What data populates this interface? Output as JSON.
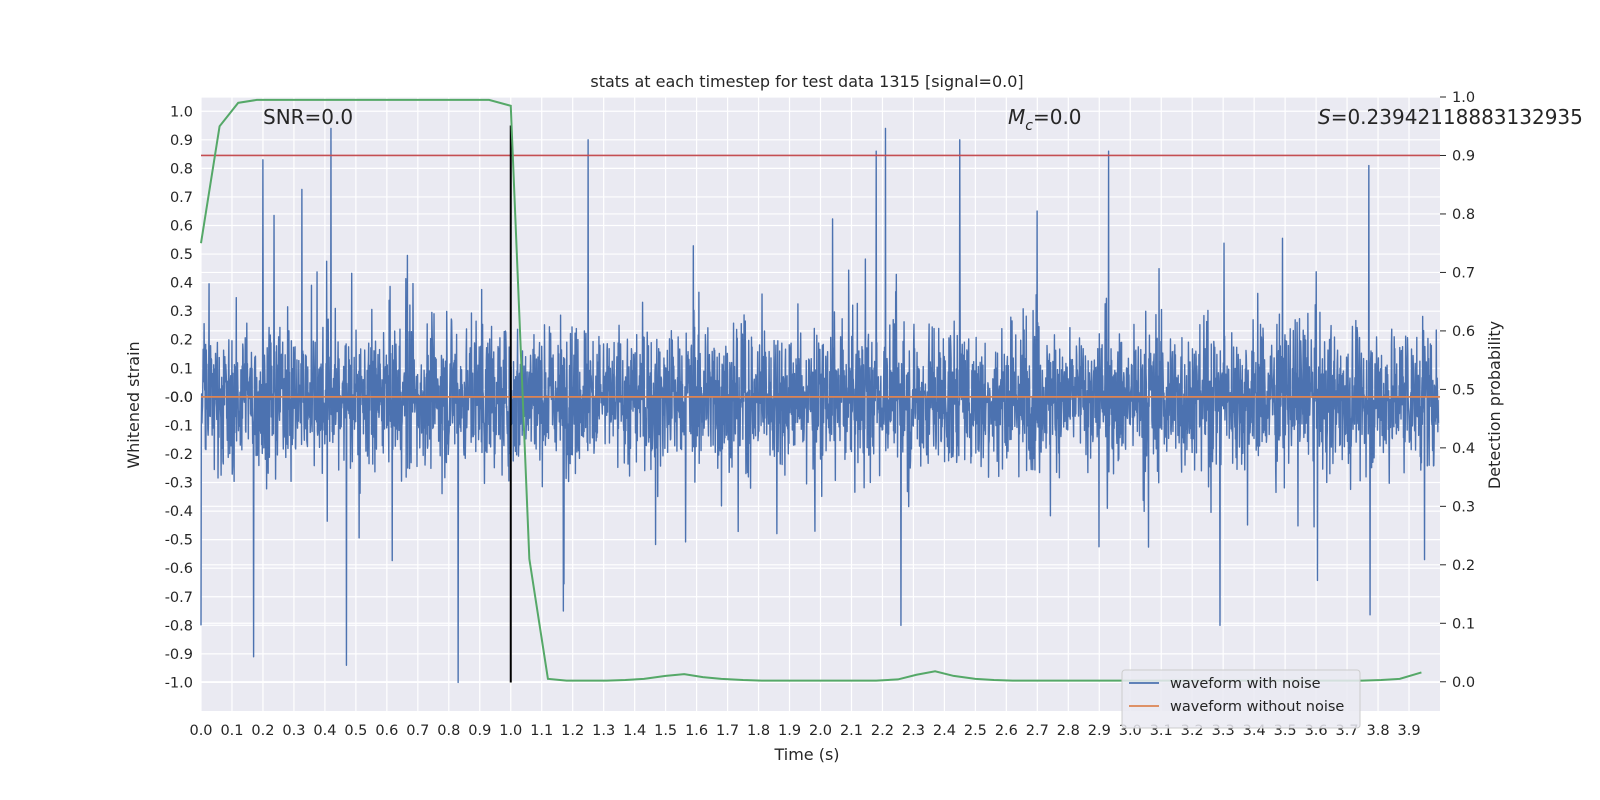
{
  "chart_data": {
    "type": "line",
    "title": "stats at each timestep for test data 1315 [signal=0.0]",
    "xlabel": "Time (s)",
    "ylabel": "Whitened strain",
    "ylabel_right": "Detection probability",
    "xlim": [
      0.0,
      4.0
    ],
    "ylim": [
      -1.1,
      1.05
    ],
    "ylim_right": [
      -0.05,
      1.0
    ],
    "x_ticks": [
      "0.0",
      "0.1",
      "0.2",
      "0.3",
      "0.4",
      "0.5",
      "0.6",
      "0.7",
      "0.8",
      "0.9",
      "1.0",
      "1.1",
      "1.2",
      "1.3",
      "1.4",
      "1.5",
      "1.6",
      "1.7",
      "1.8",
      "1.9",
      "2.0",
      "2.1",
      "2.2",
      "2.3",
      "2.4",
      "2.5",
      "2.6",
      "2.7",
      "2.8",
      "2.9",
      "3.0",
      "3.1",
      "3.2",
      "3.3",
      "3.4",
      "3.5",
      "3.6",
      "3.7",
      "3.8",
      "3.9"
    ],
    "y_ticks": [
      "1.0",
      "0.9",
      "0.8",
      "0.7",
      "0.6",
      "0.5",
      "0.4",
      "0.3",
      "0.2",
      "0.1",
      "0.0",
      "-0.0",
      "-0.1",
      "-0.2",
      "-0.3",
      "-0.4",
      "-0.5",
      "-0.6",
      "-0.7",
      "-0.8",
      "-0.9",
      "-1.0"
    ],
    "y_tick_values": [
      1.0,
      0.9,
      0.8,
      0.7,
      0.6,
      0.5,
      0.4,
      0.3,
      0.2,
      0.1,
      0.0,
      -0.0,
      -0.1,
      -0.2,
      -0.3,
      -0.4,
      -0.5,
      -0.6,
      -0.7,
      -0.8,
      -0.9,
      -1.0
    ],
    "y_right_ticks": [
      "1.0",
      "0.9",
      "0.8",
      "0.7",
      "0.6",
      "0.5",
      "0.4",
      "0.3",
      "0.2",
      "0.1",
      "0.0"
    ],
    "annotations": {
      "snr": "SNR=0.0",
      "mc_symbol": "M",
      "mc_sub": "c",
      "mc_value": "=0.0",
      "s_symbol": "S",
      "s_value": "=0.23942118883132935"
    },
    "noise_envelope_peaks": [
      {
        "x": 0.0,
        "y": -0.8
      },
      {
        "x": 0.2,
        "y": 0.83
      },
      {
        "x": 0.17,
        "y": -0.91
      },
      {
        "x": 0.42,
        "y": 0.94
      },
      {
        "x": 0.47,
        "y": -0.94
      },
      {
        "x": 0.83,
        "y": -1.0
      },
      {
        "x": 1.25,
        "y": 0.9
      },
      {
        "x": 1.17,
        "y": -0.75
      },
      {
        "x": 2.18,
        "y": 0.86
      },
      {
        "x": 2.21,
        "y": 0.94
      },
      {
        "x": 2.26,
        "y": -0.8
      },
      {
        "x": 2.45,
        "y": 0.9
      },
      {
        "x": 2.93,
        "y": 0.86
      },
      {
        "x": 3.29,
        "y": -0.8
      },
      {
        "x": 3.77,
        "y": 0.81
      },
      {
        "x": 3.95,
        "y": -0.57
      }
    ],
    "detection_probability": {
      "x": [
        0.0,
        0.06,
        0.12,
        0.18,
        0.25,
        0.31,
        0.37,
        0.43,
        0.5,
        0.56,
        0.62,
        0.68,
        0.75,
        0.81,
        0.87,
        0.93,
        1.0,
        1.06,
        1.12,
        1.18,
        1.25,
        1.31,
        1.37,
        1.43,
        1.5,
        1.56,
        1.62,
        1.68,
        1.75,
        1.81,
        1.87,
        1.93,
        2.0,
        2.06,
        2.12,
        2.18,
        2.25,
        2.31,
        2.37,
        2.43,
        2.5,
        2.56,
        2.62,
        2.68,
        2.75,
        2.81,
        2.87,
        2.93,
        3.0,
        3.06,
        3.12,
        3.18,
        3.25,
        3.31,
        3.37,
        3.43,
        3.5,
        3.56,
        3.62,
        3.68,
        3.75,
        3.81,
        3.87,
        3.94
      ],
      "y": [
        0.75,
        0.95,
        0.99,
        0.995,
        0.995,
        0.995,
        0.995,
        0.995,
        0.995,
        0.995,
        0.995,
        0.995,
        0.995,
        0.995,
        0.995,
        0.995,
        0.985,
        0.21,
        0.005,
        0.002,
        0.002,
        0.002,
        0.003,
        0.005,
        0.01,
        0.013,
        0.008,
        0.005,
        0.003,
        0.002,
        0.002,
        0.002,
        0.002,
        0.002,
        0.002,
        0.002,
        0.004,
        0.012,
        0.018,
        0.01,
        0.005,
        0.003,
        0.002,
        0.002,
        0.002,
        0.002,
        0.002,
        0.002,
        0.002,
        0.002,
        0.002,
        0.002,
        0.002,
        0.002,
        0.002,
        0.002,
        0.002,
        0.002,
        0.002,
        0.002,
        0.002,
        0.003,
        0.005,
        0.016
      ]
    },
    "threshold_right": 0.9,
    "event_marker_x": 1.0,
    "event_marker_y_range": [
      -1.0,
      0.95
    ],
    "series": [
      {
        "name": "waveform with noise",
        "color": "#4c72b0"
      },
      {
        "name": "waveform without noise",
        "color": "#dd8452"
      }
    ],
    "colors": {
      "plot_bg": "#eaeaf2",
      "grid": "#ffffff",
      "probability": "#55a868",
      "threshold": "#c44e52",
      "marker": "#000000"
    },
    "legend_position": "lower-right",
    "grid": true
  }
}
